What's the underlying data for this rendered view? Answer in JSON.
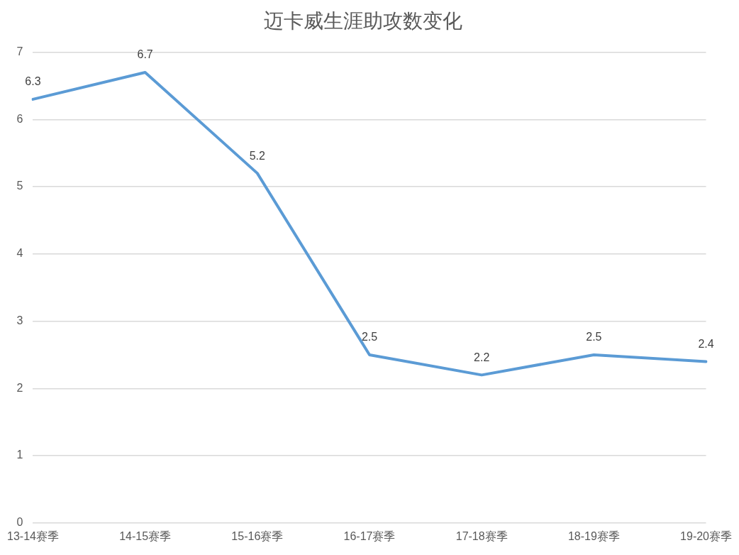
{
  "chart_data": {
    "type": "line",
    "title": "迈卡威生涯助攻数变化",
    "categories": [
      "13-14赛季",
      "14-15赛季",
      "15-16赛季",
      "16-17赛季",
      "17-18赛季",
      "18-19赛季",
      "19-20赛季"
    ],
    "values": [
      6.3,
      6.7,
      5.2,
      2.5,
      2.2,
      2.5,
      2.4
    ],
    "color": "#5b9bd5",
    "ylim": [
      0,
      7
    ],
    "yticks": [
      0,
      1,
      2,
      3,
      4,
      5,
      6,
      7
    ],
    "grid": "y",
    "marker": "none",
    "data_labels": true
  }
}
